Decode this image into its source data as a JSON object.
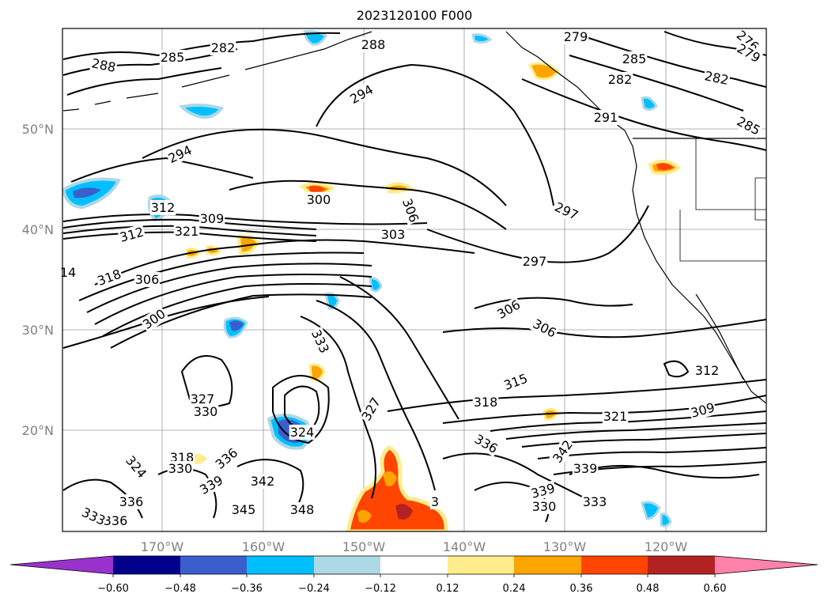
{
  "title": "2023120100 F000",
  "map": {
    "lat_labels": [
      "50°N",
      "40°N",
      "30°N",
      "20°N"
    ],
    "lon_labels": [
      "170°W",
      "160°W",
      "150°W",
      "140°W",
      "130°W",
      "120°W"
    ]
  },
  "contour_labels": [
    "288",
    "285",
    "282",
    "288",
    "279",
    "285",
    "282",
    "276",
    "279",
    "282",
    "285",
    "294",
    "291",
    "294",
    "300",
    "306",
    "297",
    "303",
    "312",
    "309",
    "321",
    "312",
    "306",
    "297",
    "14",
    "318",
    "306",
    "306",
    "300",
    "333",
    "315",
    "312",
    "327",
    "330",
    "318",
    "321",
    "309",
    "327",
    "324",
    "324",
    "318",
    "330",
    "336",
    "342",
    "336",
    "339",
    "342",
    "339",
    "339",
    "345",
    "348",
    "330",
    "333",
    "336",
    "336",
    "333",
    "3"
  ],
  "colorbar": {
    "colors": [
      "#9932cc",
      "#00008b",
      "#3a5fcd",
      "#00bfff",
      "#add8e6",
      "#ffffff",
      "#ffec8b",
      "#ffa500",
      "#ff4500",
      "#b22222",
      "#ff82ab"
    ],
    "tick_labels": [
      "−0.60",
      "−0.48",
      "−0.36",
      "−0.24",
      "−0.12",
      "0.12",
      "0.24",
      "0.36",
      "0.48",
      "0.60"
    ]
  }
}
